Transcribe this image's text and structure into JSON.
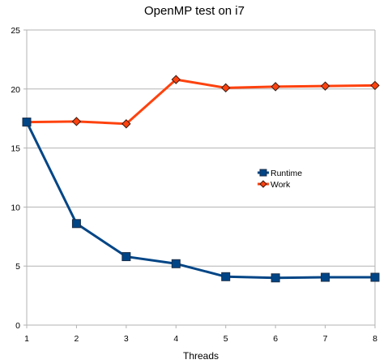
{
  "chart_data": {
    "type": "line",
    "title": "OpenMP test on i7",
    "xlabel": "Threads",
    "ylabel": "",
    "categories": [
      "1",
      "2",
      "3",
      "4",
      "5",
      "6",
      "7",
      "8"
    ],
    "ylim": [
      0,
      25
    ],
    "y_ticks": [
      "0",
      "5",
      "10",
      "15",
      "20",
      "25"
    ],
    "grid": "horizontal",
    "legend_position": "center-right",
    "series": [
      {
        "name": "Runtime",
        "color": "#004586",
        "marker": "square",
        "values": [
          17.2,
          8.6,
          5.8,
          5.2,
          4.1,
          4.0,
          4.05,
          4.05
        ]
      },
      {
        "name": "Work",
        "color": "#ff420e",
        "marker": "diamond",
        "values": [
          17.2,
          17.25,
          17.05,
          20.8,
          20.1,
          20.2,
          20.25,
          20.3
        ]
      }
    ]
  }
}
